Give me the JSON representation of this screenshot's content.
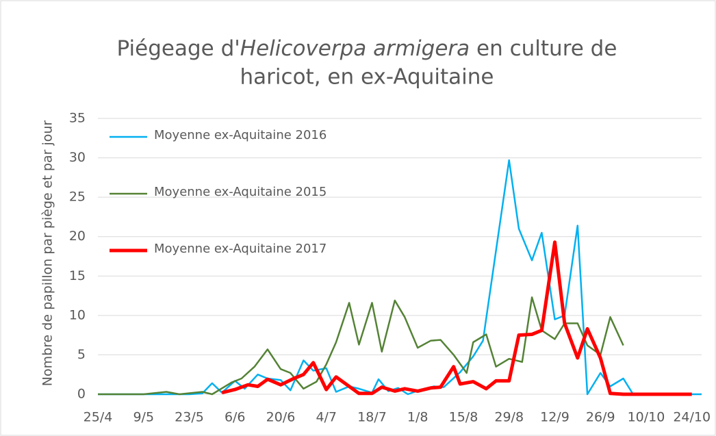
{
  "chart_data": {
    "type": "line",
    "title_parts": [
      "Piégeage d'",
      "Helicoverpa armigera",
      " en culture de",
      "haricot, en ex-Aquitaine"
    ],
    "y_label": "Nombre de papillon par piège et par jour",
    "xlim": [
      "25/4",
      "27/10"
    ],
    "xticks": [
      "25/4",
      "9/5",
      "23/5",
      "6/6",
      "20/6",
      "4/7",
      "18/7",
      "1/8",
      "15/8",
      "29/8",
      "12/9",
      "26/9",
      "10/10",
      "24/10"
    ],
    "ylim": [
      0,
      35
    ],
    "yticks": [
      0,
      5,
      10,
      15,
      20,
      25,
      30,
      35
    ],
    "grid": true,
    "legend": "upper left",
    "series": [
      {
        "name": "Moyenne ex-Aquitaine 2016",
        "color": "#00b0f0",
        "width": 2.5,
        "x": [
          "25/4",
          "9/5",
          "23/5",
          "27/5",
          "30/5",
          "2/6",
          "6/6",
          "9/6",
          "13/6",
          "16/6",
          "20/6",
          "23/6",
          "27/6",
          "30/6",
          "4/7",
          "7/7",
          "11/7",
          "14/7",
          "18/7",
          "20/7",
          "23/7",
          "26/7",
          "29/7",
          "2/8",
          "6/8",
          "9/8",
          "14/8",
          "18/8",
          "21/8",
          "29/8",
          "1/9",
          "5/9",
          "8/9",
          "12/9",
          "15/9",
          "19/9",
          "22/9",
          "26/9",
          "29/9",
          "3/10",
          "6/10",
          "27/10"
        ],
        "values": [
          0,
          0,
          0,
          0.1,
          1.4,
          0.2,
          1.7,
          0.7,
          2.5,
          2,
          1.8,
          0.5,
          4.3,
          3,
          3.3,
          0.3,
          1,
          0.7,
          0.2,
          1.9,
          0.4,
          0.8,
          0,
          0.6,
          1,
          0.9,
          2.8,
          4.8,
          6.8,
          29.7,
          21,
          17,
          20.5,
          9.5,
          10,
          21.4,
          0,
          2.7,
          1,
          2,
          0,
          0
        ]
      },
      {
        "name": "Moyenne ex-Aquitaine 2015",
        "color": "#548235",
        "width": 2.5,
        "x": [
          "25/4",
          "9/5",
          "16/5",
          "20/5",
          "27/5",
          "30/5",
          "5/6",
          "8/6",
          "12/6",
          "16/6",
          "20/6",
          "23/6",
          "27/6",
          "1/7",
          "4/7",
          "7/7",
          "11/7",
          "14/7",
          "18/7",
          "21/7",
          "25/7",
          "28/7",
          "1/8",
          "5/8",
          "8/8",
          "12/8",
          "16/8",
          "18/8",
          "22/8",
          "25/8",
          "29/8",
          "2/9",
          "5/9",
          "8/9",
          "12/9",
          "15/9",
          "19/9",
          "22/9",
          "26/9",
          "29/9",
          "3/10"
        ],
        "values": [
          0,
          0,
          0.3,
          0,
          0.3,
          0,
          1.5,
          2,
          3.5,
          5.7,
          3.2,
          2.7,
          0.7,
          1.6,
          3.8,
          6.6,
          11.6,
          6.3,
          11.6,
          5.4,
          11.9,
          9.8,
          5.9,
          6.8,
          6.9,
          5,
          2.7,
          6.6,
          7.6,
          3.5,
          4.5,
          4.1,
          12.3,
          8.1,
          7,
          9,
          9,
          6.2,
          5,
          9.8,
          6.2
        ]
      },
      {
        "name": "Moyenne ex-Aquitaine 2017",
        "color": "#ff0000",
        "width": 5,
        "x": [
          "2/6",
          "6/6",
          "10/6",
          "13/6",
          "16/6",
          "20/6",
          "24/6",
          "27/6",
          "30/6",
          "4/7",
          "7/7",
          "11/7",
          "14/7",
          "18/7",
          "21/7",
          "25/7",
          "28/7",
          "1/8",
          "5/8",
          "8/8",
          "12/8",
          "14/8",
          "18/8",
          "22/8",
          "25/8",
          "29/8",
          "1/9",
          "5/9",
          "8/9",
          "12/9",
          "15/9",
          "19/9",
          "22/9",
          "26/9",
          "29/9",
          "3/10",
          "24/10"
        ],
        "values": [
          0.2,
          0.6,
          1.2,
          1,
          1.9,
          1.2,
          2,
          2.5,
          4,
          0.6,
          2.2,
          1,
          0.1,
          0.1,
          0.9,
          0.4,
          0.7,
          0.4,
          0.8,
          0.9,
          3.5,
          1.3,
          1.6,
          0.7,
          1.7,
          1.7,
          7.5,
          7.6,
          8.1,
          19.3,
          9,
          4.6,
          8.3,
          4.6,
          0.1,
          0,
          0
        ]
      }
    ]
  }
}
